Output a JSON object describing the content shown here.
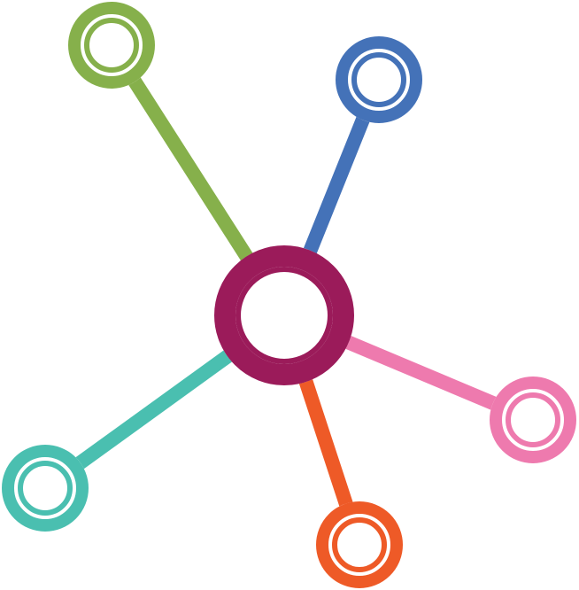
{
  "diagram": {
    "type": "hub-and-spoke network",
    "hub": {
      "icon": "ring-node-icon",
      "color": "#9B1B5A"
    },
    "spokes": [
      {
        "id": "green",
        "icon": "ring-node-icon",
        "color": "#86B04B"
      },
      {
        "id": "blue",
        "icon": "ring-node-icon",
        "color": "#4472B8"
      },
      {
        "id": "pink",
        "icon": "ring-node-icon",
        "color": "#EE7AAE"
      },
      {
        "id": "orange",
        "icon": "ring-node-icon",
        "color": "#EE5A27"
      },
      {
        "id": "teal",
        "icon": "ring-node-icon",
        "color": "#4ABFB0"
      }
    ]
  }
}
